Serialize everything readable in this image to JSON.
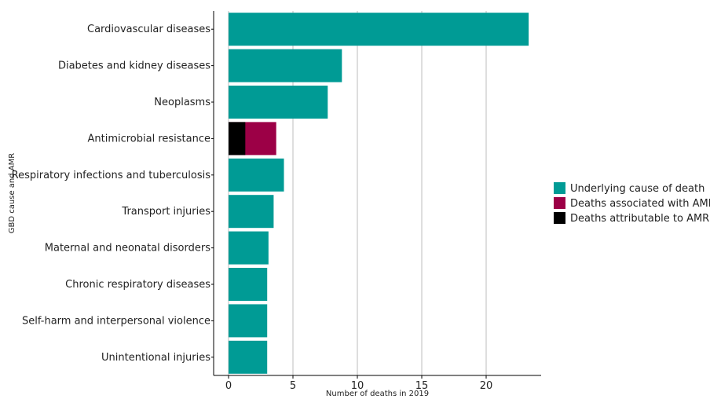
{
  "chart_data": {
    "type": "bar",
    "orientation": "horizontal",
    "stacked": true,
    "title": "",
    "xlabel": "Number of deaths in 2019",
    "ylabel": "GBD cause and AMR",
    "xlim": [
      0,
      24.2
    ],
    "xticks": [
      0,
      5,
      10,
      15,
      20
    ],
    "grid": "vertical major lines",
    "legend_position": "right",
    "categories": [
      "Cardiovascular diseases",
      "Diabetes and kidney diseases",
      "Neoplasms",
      "Antimicrobial resistance",
      "Respiratory infections and tuberculosis",
      "Transport injuries",
      "Maternal and neonatal disorders",
      "Chronic respiratory diseases",
      "Self-harm and interpersonal violence",
      "Unintentional injuries"
    ],
    "series": [
      {
        "name": "Underlying cause of death",
        "color": "#009b95",
        "values": [
          23.3,
          8.8,
          7.7,
          0,
          4.3,
          3.5,
          3.1,
          3.0,
          3.0,
          3.0
        ]
      },
      {
        "name": "Deaths associated with AMR",
        "color": "#9c0046",
        "values": [
          0,
          0,
          0,
          3.7,
          0,
          0,
          0,
          0,
          0,
          0
        ]
      },
      {
        "name": "Deaths attributable to AMR",
        "color": "#000000",
        "values": [
          0,
          0,
          0,
          1.3,
          0,
          0,
          0,
          0,
          0,
          0
        ]
      }
    ]
  }
}
